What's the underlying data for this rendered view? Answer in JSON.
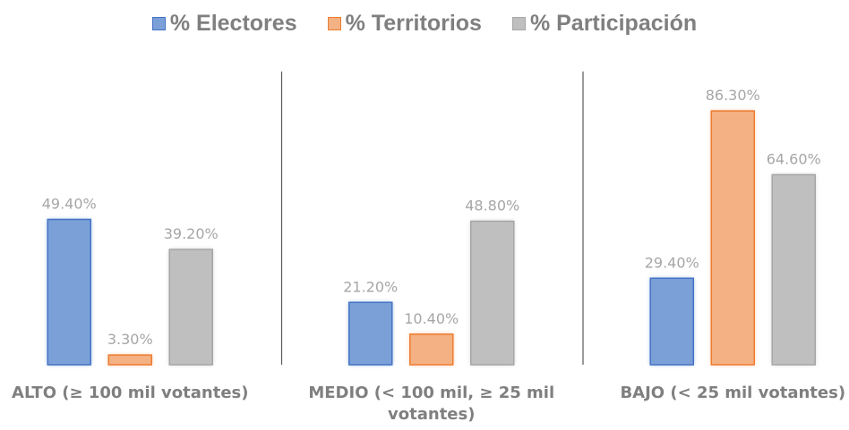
{
  "chart_data": {
    "type": "bar",
    "categories": [
      "ALTO (≥ 100 mil votantes)",
      "MEDIO (< 100 mil, ≥ 25 mil votantes)",
      "BAJO (< 25 mil votantes)"
    ],
    "series": [
      {
        "name": "% Electores",
        "color": "#7ba0d8",
        "values": [
          49.4,
          21.2,
          29.4
        ],
        "value_labels": [
          "49.40%",
          "21.20%",
          "29.40%"
        ]
      },
      {
        "name": "% Territorios",
        "color": "#f4b183",
        "values": [
          3.3,
          10.4,
          86.3
        ],
        "value_labels": [
          "3.30%",
          "10.40%",
          "86.30%"
        ]
      },
      {
        "name": "% Participación",
        "color": "#bfbfbf",
        "values": [
          39.2,
          48.8,
          64.6
        ],
        "value_labels": [
          "39.20%",
          "48.80%",
          "64.60%"
        ]
      }
    ],
    "legend": "top"
  }
}
